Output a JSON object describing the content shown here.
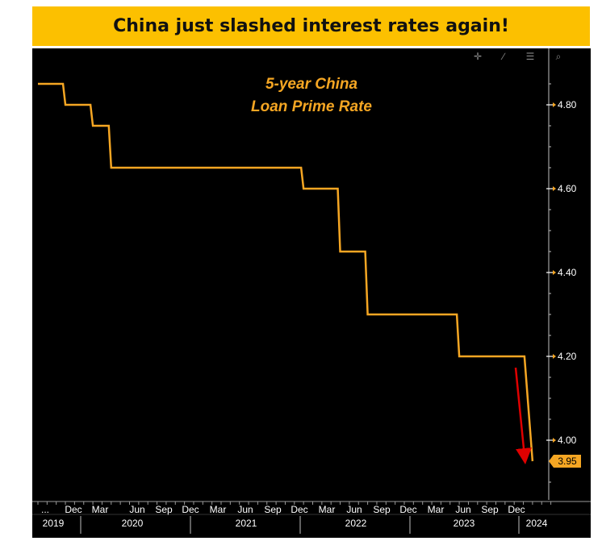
{
  "header": {
    "title": "China just slashed interest rates again!"
  },
  "toolbar": {
    "icons": [
      "crosshair-icon",
      "pencil-icon",
      "list-icon",
      "search-icon"
    ]
  },
  "colors": {
    "banner": "#fcc000",
    "line": "#f5a623",
    "background": "#000000",
    "arrow": "#e00000",
    "axis_text": "#ffffff"
  },
  "chart_data": {
    "type": "line",
    "title": "5-year China",
    "subtitle": "Loan Prime Rate",
    "xlabel": "",
    "ylabel": "",
    "ylim": [
      3.85,
      4.88
    ],
    "y_ticks": [
      "4.80",
      "4.60",
      "4.40",
      "4.20",
      "4.00"
    ],
    "last_value_label": "3.95",
    "x_month_labels": [
      "...",
      "Dec",
      "Mar",
      "Jun",
      "Sep",
      "Dec",
      "Mar",
      "Jun",
      "Sep",
      "Dec",
      "Mar",
      "Jun",
      "Sep",
      "Dec",
      "Mar",
      "Jun",
      "Sep",
      "Dec"
    ],
    "x_year_labels": [
      "2019",
      "2020",
      "2021",
      "2022",
      "2023",
      "2024"
    ],
    "series": [
      {
        "name": "5-year China Loan Prime Rate",
        "points": [
          {
            "t": "2019-08",
            "v": 4.85
          },
          {
            "t": "2019-11",
            "v": 4.8
          },
          {
            "t": "2020-02",
            "v": 4.75
          },
          {
            "t": "2020-04",
            "v": 4.65
          },
          {
            "t": "2021-11",
            "v": 4.65
          },
          {
            "t": "2022-01",
            "v": 4.6
          },
          {
            "t": "2022-05",
            "v": 4.45
          },
          {
            "t": "2022-08",
            "v": 4.3
          },
          {
            "t": "2023-06",
            "v": 4.2
          },
          {
            "t": "2024-01",
            "v": 4.2
          },
          {
            "t": "2024-02",
            "v": 3.95
          }
        ]
      }
    ]
  }
}
